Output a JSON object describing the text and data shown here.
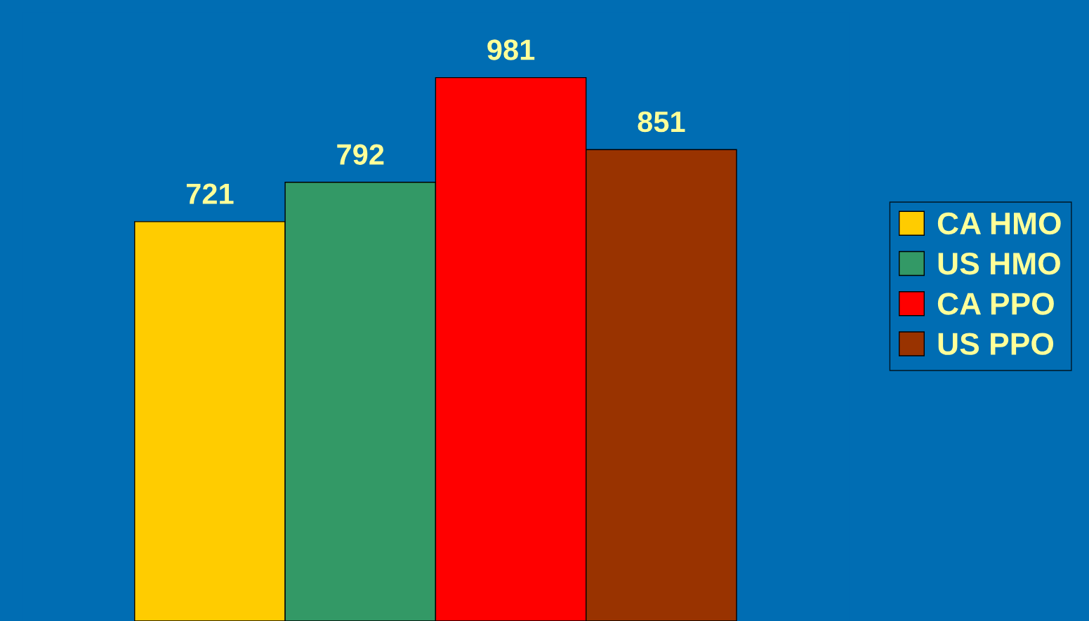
{
  "chart_data": {
    "type": "bar",
    "categories": [
      null
    ],
    "series": [
      {
        "name": "CA HMO",
        "color": "#ffcc00",
        "values": [
          721
        ]
      },
      {
        "name": "US HMO",
        "color": "#339966",
        "values": [
          792
        ]
      },
      {
        "name": "CA PPO",
        "color": "#ff0000",
        "values": [
          981
        ]
      },
      {
        "name": "US PPO",
        "color": "#993300",
        "values": [
          851
        ]
      }
    ],
    "data_labels": true,
    "legend": "right",
    "grid": false
  }
}
